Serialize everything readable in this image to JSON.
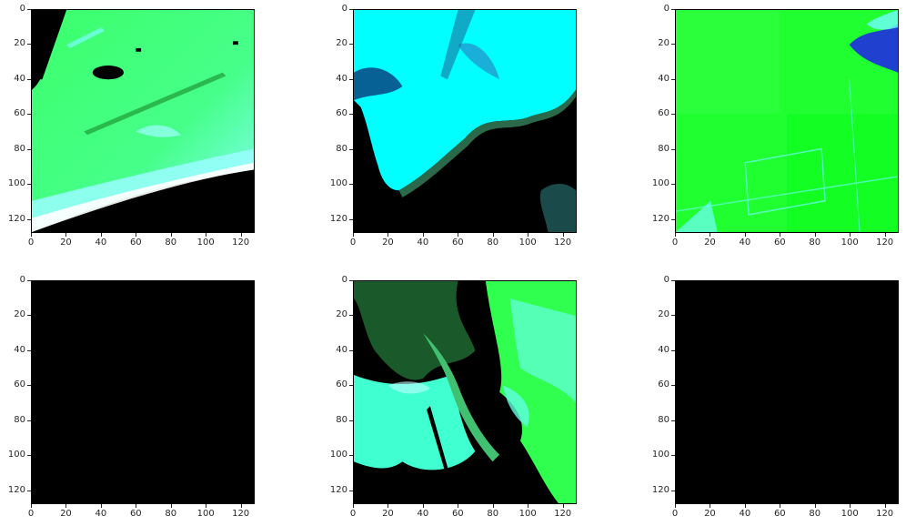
{
  "figure": {
    "tick_values": [
      "0",
      "20",
      "40",
      "60",
      "80",
      "100",
      "120"
    ]
  },
  "panels": [
    {
      "id": "panel-1",
      "content": "satellite-coastal-strip",
      "colors": {
        "primary": "#3cff5a",
        "secondary": "#64ffd2",
        "water": "#000000"
      }
    },
    {
      "id": "panel-2",
      "content": "satellite-bay-cyan",
      "colors": {
        "primary": "#00ffff",
        "edge": "#1a5a4a",
        "water": "#000000"
      }
    },
    {
      "id": "panel-3",
      "content": "satellite-green-field",
      "colors": {
        "primary": "#18ff30",
        "accent": "#2040d0"
      }
    },
    {
      "id": "panel-4",
      "content": "blank-black",
      "colors": {
        "primary": "#000000"
      }
    },
    {
      "id": "panel-5",
      "content": "satellite-delta-mixed",
      "colors": {
        "primary": "#40ffc0",
        "secondary": "#20ff30",
        "water": "#000000"
      }
    },
    {
      "id": "panel-6",
      "content": "blank-black",
      "colors": {
        "primary": "#000000"
      }
    }
  ]
}
